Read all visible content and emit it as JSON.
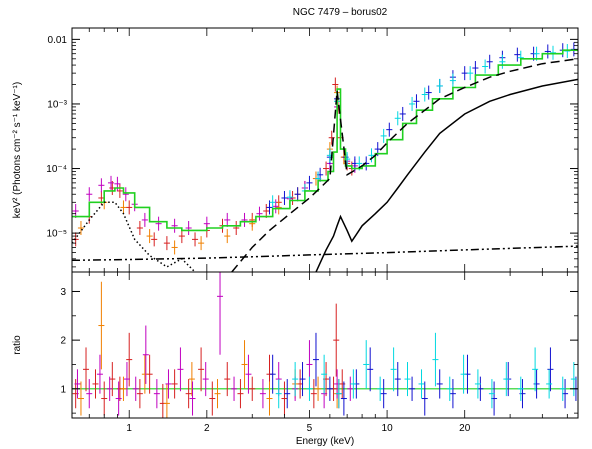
{
  "chart_data": [
    {
      "type": "line",
      "title": "NGC 7479 – borus02",
      "xlabel": "",
      "ylabel": "keV² (Photons cm⁻² s⁻¹ keV⁻¹)",
      "x_scale": "log",
      "y_scale": "log",
      "xlim": [
        0.6,
        55
      ],
      "ylim": [
        2.5e-06,
        0.015
      ],
      "x_ticks": [
        1,
        2,
        5,
        10,
        20
      ],
      "y_ticks": [
        {
          "value": 1e-05,
          "label": "10⁻⁵"
        },
        {
          "value": 0.0001,
          "label": "10⁻⁴"
        },
        {
          "value": 0.001,
          "label": "10⁻³"
        },
        {
          "value": 0.01,
          "label": "0.01"
        }
      ],
      "colors": {
        "pn": "#d62020",
        "mos": "#f08000",
        "xmm": "#c000c0",
        "fpma": "#1010d0",
        "fpmb": "#00d8e0",
        "model": "#20d020",
        "component": "#000000"
      },
      "series": [
        {
          "key": "pn",
          "x": [
            0.62,
            0.7,
            0.78,
            0.86,
            0.92,
            1.0,
            1.1,
            1.25,
            1.4,
            1.6,
            1.8,
            2.0,
            2.3,
            2.6,
            3.0,
            3.4,
            3.8,
            4.3,
            4.8,
            5.3,
            5.8,
            6.1,
            6.3,
            6.45,
            6.6,
            6.8,
            7.0,
            7.3
          ],
          "y": [
            8e-06,
            1.8e-05,
            3.5e-05,
            5e-05,
            4.5e-05,
            2.5e-05,
            1.2e-05,
            8e-06,
            7e-06,
            9e-06,
            8e-06,
            1.1e-05,
            1.3e-05,
            1.2e-05,
            1.6e-05,
            2.2e-05,
            3e-05,
            3.5e-05,
            5e-05,
            7e-05,
            0.0001,
            0.0003,
            0.002,
            0.0009,
            0.0003,
            0.00015,
            0.00012,
            0.0001
          ]
        },
        {
          "key": "mos",
          "x": [
            0.65,
            0.8,
            0.95,
            1.2,
            1.5,
            1.9,
            2.4,
            3.0,
            3.8,
            4.5,
            5.3,
            6.0,
            6.4,
            6.8
          ],
          "y": [
            1.2e-05,
            3e-05,
            2.5e-05,
            9e-06,
            6e-06,
            7e-06,
            9e-06,
            1.4e-05,
            2.5e-05,
            4e-05,
            7e-05,
            0.0002,
            0.0015,
            0.00015
          ]
        },
        {
          "key": "xmm",
          "x": [
            0.62,
            0.7,
            0.78,
            0.85,
            0.9,
            0.97,
            1.05,
            1.15,
            1.3,
            1.5,
            1.7,
            2.0,
            2.4,
            2.8,
            3.2,
            3.7,
            4.2,
            4.8,
            5.4,
            6.0,
            6.4,
            7.0,
            7.5
          ],
          "y": [
            2.2e-05,
            4e-05,
            5.5e-05,
            6e-05,
            5.8e-05,
            4e-05,
            2.8e-05,
            1.6e-05,
            1.4e-05,
            1.3e-05,
            1.2e-05,
            1.4e-05,
            1.6e-05,
            1.6e-05,
            2e-05,
            2.6e-05,
            3.4e-05,
            5e-05,
            7e-05,
            0.00012,
            0.0009,
            0.00013,
            0.00011
          ]
        },
        {
          "key": "fpma",
          "x": [
            3.5,
            4.0,
            4.5,
            5.0,
            5.5,
            6.0,
            6.4,
            6.9,
            7.5,
            8.3,
            9.2,
            10.2,
            11.5,
            13.0,
            14.5,
            16.0,
            18.0,
            20.0,
            22.0,
            25.0,
            28.0,
            32.0,
            37.0,
            42.0,
            48.0,
            53.0
          ],
          "y": [
            2.5e-05,
            3.5e-05,
            4e-05,
            6e-05,
            8e-05,
            0.00015,
            0.0012,
            0.00015,
            0.00012,
            0.00012,
            0.0002,
            0.0004,
            0.0007,
            0.0011,
            0.0015,
            0.0019,
            0.0026,
            0.003,
            0.0036,
            0.0045,
            0.0052,
            0.0058,
            0.006,
            0.0065,
            0.0068,
            0.007
          ]
        },
        {
          "key": "fpmb",
          "x": [
            3.6,
            4.2,
            4.8,
            5.4,
            6.0,
            6.4,
            7.0,
            7.8,
            8.7,
            9.7,
            11.0,
            12.5,
            14.0,
            16.0,
            18.0,
            21.0,
            24.0,
            28.0,
            33.0,
            38.0,
            44.0,
            50.0
          ],
          "y": [
            3e-05,
            3.6e-05,
            4.5e-05,
            7e-05,
            0.00016,
            0.0011,
            0.00014,
            0.00012,
            0.00016,
            0.00032,
            0.0006,
            0.001,
            0.0014,
            0.0019,
            0.0023,
            0.003,
            0.0038,
            0.0045,
            0.0052,
            0.006,
            0.0062,
            0.0066
          ]
        },
        {
          "key": "model",
          "x": [
            0.6,
            0.7,
            0.8,
            0.88,
            0.95,
            1.05,
            1.2,
            1.4,
            1.6,
            1.8,
            2.0,
            2.3,
            2.7,
            3.1,
            3.6,
            4.2,
            4.8,
            5.4,
            5.9,
            6.2,
            6.4,
            6.6,
            6.9,
            7.3,
            8.0,
            9.0,
            10.0,
            11.5,
            13.0,
            15.0,
            18.0,
            22.0,
            27.0,
            33.0,
            40.0,
            48.0,
            55.0
          ],
          "y": [
            1.8e-05,
            3e-05,
            4.5e-05,
            5e-05,
            4.2e-05,
            2.5e-05,
            1.5e-05,
            1.2e-05,
            1.1e-05,
            1.1e-05,
            1.2e-05,
            1.3e-05,
            1.5e-05,
            1.8e-05,
            2.4e-05,
            3.2e-05,
            4.5e-05,
            6.5e-05,
            9e-05,
            0.00018,
            0.0017,
            0.0002,
            0.00011,
            0.0001,
            0.00011,
            0.00017,
            0.00028,
            0.0005,
            0.0008,
            0.0012,
            0.0018,
            0.0028,
            0.004,
            0.005,
            0.006,
            0.0068,
            0.0072
          ]
        },
        {
          "key": "transmitted",
          "style": "dashed",
          "x": [
            2.5,
            3.0,
            3.5,
            4.0,
            4.5,
            5.0,
            5.5,
            6.0,
            6.4,
            7.0,
            8.0,
            9.0,
            10.0,
            12.0,
            14.0,
            16.0,
            20.0,
            25.0,
            30.0,
            40.0,
            55.0
          ],
          "y": [
            2.5e-06,
            6e-06,
            1.1e-05,
            1.7e-05,
            2.5e-05,
            3.5e-05,
            5e-05,
            7e-05,
            0.0016,
            8e-05,
            0.00011,
            0.00016,
            0.00025,
            0.0005,
            0.0008,
            0.0012,
            0.0018,
            0.0026,
            0.0032,
            0.0042,
            0.005
          ]
        },
        {
          "key": "reflected",
          "style": "solid",
          "x": [
            5.3,
            5.8,
            6.2,
            6.4,
            6.6,
            7.0,
            7.3,
            7.6,
            8.0,
            9.0,
            10.0,
            11.0,
            12.0,
            14.0,
            16.0,
            20.0,
            25.0,
            30.0,
            40.0,
            55.0
          ],
          "y": [
            2.5e-06,
            5.5e-06,
            9e-06,
            1.3e-05,
            1.8e-05,
            1.1e-05,
            7.5e-06,
            9.5e-06,
            1.3e-05,
            2e-05,
            3e-05,
            5e-05,
            8e-05,
            0.00018,
            0.00035,
            0.0007,
            0.0011,
            0.0014,
            0.0019,
            0.0024
          ]
        },
        {
          "key": "scattered",
          "style": "dashdot",
          "x": [
            0.6,
            1.0,
            2.0,
            3.0,
            5.0,
            10.0,
            20.0,
            30.0,
            55.0
          ],
          "y": [
            3.8e-06,
            3.9e-06,
            4.1e-06,
            4.3e-06,
            4.6e-06,
            5e-06,
            5.5e-06,
            5.8e-06,
            6.3e-06
          ]
        },
        {
          "key": "soft_thermal",
          "style": "dotted",
          "x": [
            0.6,
            0.7,
            0.8,
            0.88,
            0.95,
            1.05,
            1.2,
            1.4,
            1.6,
            1.8
          ],
          "y": [
            7e-06,
            1.6e-05,
            3e-05,
            3e-05,
            2e-05,
            8e-06,
            4.5e-06,
            3e-06,
            4e-06,
            2.5e-06
          ]
        }
      ]
    },
    {
      "type": "scatter",
      "title": "",
      "xlabel": "Energy (keV)",
      "ylabel": "ratio",
      "x_scale": "log",
      "xlim": [
        0.6,
        55
      ],
      "ylim": [
        0.4,
        3.4
      ],
      "x_ticks": [
        {
          "value": 1,
          "label": "1"
        },
        {
          "value": 2,
          "label": "2"
        },
        {
          "value": 5,
          "label": "5"
        },
        {
          "value": 10,
          "label": "10"
        },
        {
          "value": 20,
          "label": "20"
        }
      ],
      "y_ticks": [
        {
          "value": 1,
          "label": "1"
        },
        {
          "value": 2,
          "label": "2"
        },
        {
          "value": 3,
          "label": "3"
        }
      ],
      "reference_line": 1,
      "series": [
        {
          "key": "pn",
          "x": [
            0.62,
            0.68,
            0.74,
            0.8,
            0.86,
            0.92,
            1.0,
            1.1,
            1.2,
            1.35,
            1.5,
            1.7,
            1.9,
            2.1,
            2.4,
            2.7,
            3.0,
            3.5,
            4.0,
            4.6,
            5.2,
            5.8,
            6.2,
            6.35,
            6.5,
            6.7
          ],
          "y": [
            0.9,
            1.4,
            1.1,
            0.8,
            1.2,
            1.0,
            1.6,
            0.9,
            1.3,
            0.7,
            1.1,
            0.9,
            1.4,
            0.8,
            1.2,
            0.9,
            1.0,
            1.3,
            0.8,
            1.1,
            0.9,
            1.2,
            1.0,
            2.0,
            0.9,
            1.1
          ]
        },
        {
          "key": "mos",
          "x": [
            0.65,
            0.78,
            0.95,
            1.15,
            1.4,
            1.75,
            2.2,
            2.8,
            3.5,
            4.4,
            5.4,
            6.4
          ],
          "y": [
            0.8,
            2.3,
            1.0,
            1.3,
            0.7,
            1.2,
            0.9,
            1.5,
            0.8,
            1.1,
            1.0,
            0.9
          ]
        },
        {
          "key": "xmm",
          "x": [
            0.63,
            0.7,
            0.77,
            0.84,
            0.91,
            0.98,
            1.06,
            1.16,
            1.28,
            1.42,
            1.58,
            1.76,
            1.98,
            2.25,
            2.55,
            2.9,
            3.3,
            3.8,
            4.4,
            5.0,
            5.7,
            6.4,
            7.2
          ],
          "y": [
            1.1,
            0.9,
            1.3,
            1.0,
            0.8,
            1.2,
            1.0,
            1.7,
            0.9,
            1.1,
            1.4,
            0.8,
            1.2,
            2.9,
            1.0,
            1.3,
            0.9,
            1.2,
            1.0,
            1.5,
            0.9,
            1.1,
            1.0
          ]
        },
        {
          "key": "fpma",
          "x": [
            3.6,
            4.1,
            4.7,
            5.3,
            6.0,
            6.8,
            7.6,
            8.6,
            9.7,
            11.0,
            12.5,
            14.0,
            16.0,
            18.0,
            20.5,
            23.0,
            26.0,
            29.5,
            33.5,
            38.0,
            43.0,
            49.0,
            54.0
          ],
          "y": [
            1.3,
            0.9,
            1.2,
            1.6,
            1.0,
            0.8,
            1.1,
            1.4,
            0.9,
            1.2,
            1.0,
            0.8,
            1.1,
            0.9,
            1.3,
            1.0,
            0.8,
            1.2,
            0.9,
            1.1,
            1.4,
            0.9,
            1.0
          ]
        },
        {
          "key": "fpmb",
          "x": [
            3.8,
            4.4,
            5.0,
            5.7,
            6.5,
            7.4,
            8.3,
            9.4,
            10.6,
            12.0,
            13.6,
            15.4,
            17.5,
            19.8,
            22.5,
            25.5,
            29.0,
            33.0,
            37.5,
            42.5,
            48.0,
            53.0
          ],
          "y": [
            0.9,
            1.2,
            1.0,
            1.3,
            0.9,
            1.1,
            1.5,
            1.0,
            1.4,
            1.2,
            1.1,
            1.6,
            1.0,
            1.3,
            1.1,
            0.9,
            1.2,
            1.0,
            1.4,
            1.1,
            1.0,
            1.2
          ]
        }
      ]
    }
  ]
}
